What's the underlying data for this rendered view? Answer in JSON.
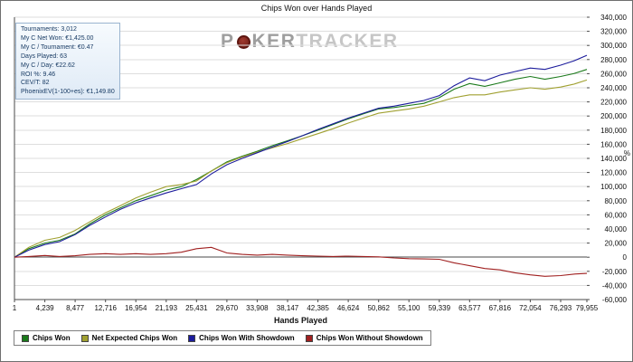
{
  "title": "Chips Won over Hands Played",
  "right_axis_unit": "%",
  "stats": [
    "Tournaments: 3,012",
    "My C Net Won: €1,425.00",
    "My C / Tournament: €0.47",
    "Days Played: 63",
    "My C / Day: €22.62",
    "ROI %: 9.46",
    "CEV/T: 82",
    "PhoenixEV(1-100+es): €1,149.80"
  ],
  "watermark": {
    "p": "P",
    "ker": "KER",
    "tracker": "TRACKER"
  },
  "chart_data": {
    "type": "line",
    "title": "Chips Won over Hands Played",
    "xlabel": "Hands Played",
    "ylabel": "",
    "grid": "horizontal",
    "legend_position": "bottom-left",
    "x_min": 1,
    "x_max": 79955,
    "y_axis": {
      "min": -60000,
      "max": 340000,
      "step": 20000
    },
    "x_ticks": [
      {
        "value": 1,
        "label": "1"
      },
      {
        "value": 4239,
        "label": "4,239"
      },
      {
        "value": 8477,
        "label": "8,477"
      },
      {
        "value": 12716,
        "label": "12,716"
      },
      {
        "value": 16954,
        "label": "16,954"
      },
      {
        "value": 21193,
        "label": "21,193"
      },
      {
        "value": 25431,
        "label": "25,431"
      },
      {
        "value": 29670,
        "label": "29,670"
      },
      {
        "value": 33908,
        "label": "33,908"
      },
      {
        "value": 38147,
        "label": "38,147"
      },
      {
        "value": 42385,
        "label": "42,385"
      },
      {
        "value": 46624,
        "label": "46,624"
      },
      {
        "value": 50862,
        "label": "50,862"
      },
      {
        "value": 55100,
        "label": "55,100"
      },
      {
        "value": 59339,
        "label": "59,339"
      },
      {
        "value": 63577,
        "label": "63,577"
      },
      {
        "value": 67816,
        "label": "67,816"
      },
      {
        "value": 72054,
        "label": "72,054"
      },
      {
        "value": 76293,
        "label": "76,293"
      },
      {
        "value": 79955,
        "label": "79,955"
      }
    ],
    "x": [
      1,
      2000,
      4239,
      6300,
      8477,
      10500,
      12716,
      14800,
      16954,
      19000,
      21193,
      23300,
      25431,
      27500,
      29670,
      31800,
      33908,
      36000,
      38147,
      40200,
      42385,
      44500,
      46624,
      48700,
      50862,
      53000,
      55100,
      57200,
      59339,
      61400,
      63577,
      65700,
      67816,
      69900,
      72054,
      74100,
      76293,
      78100,
      79955
    ],
    "series": [
      {
        "name": "Chips Won",
        "color": "#1b7a1b",
        "values": [
          0,
          12000,
          20000,
          24000,
          33000,
          47000,
          60000,
          70000,
          80000,
          87000,
          95000,
          100000,
          110000,
          122000,
          135000,
          143000,
          150000,
          158000,
          165000,
          172000,
          180000,
          188000,
          196000,
          203000,
          210000,
          212000,
          215000,
          218000,
          226000,
          238000,
          246000,
          242000,
          247000,
          252000,
          256000,
          252000,
          256000,
          260000,
          266000
        ]
      },
      {
        "name": "Net Expected Chips Won",
        "color": "#a0a030",
        "values": [
          0,
          14000,
          24000,
          28000,
          38000,
          50000,
          63000,
          73000,
          84000,
          92000,
          100000,
          103000,
          108000,
          122000,
          134000,
          142000,
          149000,
          155000,
          161000,
          168000,
          175000,
          182000,
          190000,
          197000,
          204000,
          207000,
          210000,
          214000,
          220000,
          226000,
          230000,
          230000,
          234000,
          237000,
          240000,
          238000,
          241000,
          245000,
          251000
        ]
      },
      {
        "name": "Chips Won With Showdown",
        "color": "#1c1c9c",
        "values": [
          0,
          10000,
          18000,
          22000,
          32000,
          45000,
          57000,
          68000,
          77000,
          84000,
          91000,
          97000,
          103000,
          118000,
          131000,
          140000,
          148000,
          156000,
          164000,
          172000,
          181000,
          189000,
          197000,
          204000,
          211000,
          214000,
          218000,
          222000,
          229000,
          243000,
          254000,
          250000,
          258000,
          263000,
          268000,
          266000,
          272000,
          278000,
          286000
        ]
      },
      {
        "name": "Chips Won Without Showdown",
        "color": "#a02020",
        "values": [
          0,
          1000,
          2500,
          1000,
          2000,
          4000,
          5000,
          4000,
          5000,
          4000,
          5000,
          7000,
          12000,
          14000,
          6000,
          4000,
          3000,
          4000,
          3000,
          2000,
          1500,
          1000,
          1500,
          1000,
          500,
          -1000,
          -2000,
          -2500,
          -3000,
          -8000,
          -12000,
          -16000,
          -18000,
          -22000,
          -25000,
          -27000,
          -26000,
          -24000,
          -23000
        ]
      }
    ]
  }
}
